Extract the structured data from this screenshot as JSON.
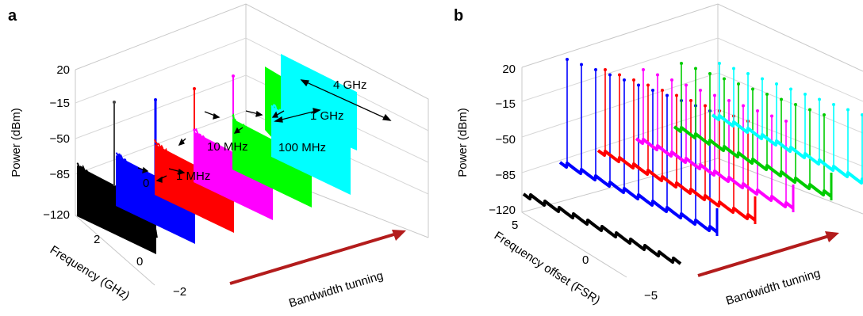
{
  "chart_data": [
    {
      "panel": "a",
      "type": "line",
      "dimensions": "3d-waterfall",
      "xlabel": "Frequency (GHz)",
      "ylabel": "Power (dBm)",
      "x_ticks": [
        "2",
        "0",
        "−2"
      ],
      "y_ticks": [
        "20",
        "−15",
        "−50",
        "−85",
        "−120"
      ],
      "ylim": [
        -120,
        20
      ],
      "depth_label": "Bandwidth tunning",
      "series": [
        {
          "color": "#000000",
          "linewidth_label": "0",
          "peak_dBm": 0,
          "floor_dBm": -85,
          "band_width_GHz": 0
        },
        {
          "color": "#0000ff",
          "linewidth_label": "1 MHz",
          "peak_dBm": 0,
          "floor_dBm": -80,
          "band_width_GHz": 0.001
        },
        {
          "color": "#ff0000",
          "linewidth_label": "10 MHz",
          "peak_dBm": 0,
          "floor_dBm": -75,
          "band_width_GHz": 0.01
        },
        {
          "color": "#ff00ff",
          "linewidth_label": "100 MHz",
          "peak_dBm": 0,
          "floor_dBm": -70,
          "band_width_GHz": 0.1
        },
        {
          "color": "#00ff00",
          "linewidth_label": "1 GHz",
          "peak_dBm": -15,
          "floor_dBm": -65,
          "band_width_GHz": 1
        },
        {
          "color": "#00ffff",
          "linewidth_label": "4 GHz",
          "peak_dBm": -10,
          "floor_dBm": -60,
          "band_width_GHz": 4
        }
      ],
      "annotations": [
        "0",
        "1 MHz",
        "10 MHz",
        "100 MHz",
        "1 GHz",
        "4 GHz"
      ]
    },
    {
      "panel": "b",
      "type": "line",
      "dimensions": "3d-waterfall",
      "xlabel": "Frequency offset (FSR)",
      "ylabel": "Power (dBm)",
      "x_ticks": [
        "5",
        "0",
        "−5"
      ],
      "y_ticks": [
        "20",
        "−15",
        "−50",
        "−85",
        "−120"
      ],
      "ylim": [
        -120,
        20
      ],
      "depth_label": "Bandwidth tunning",
      "series": [
        {
          "color": "#000000",
          "comb_peak_dBm": -95
        },
        {
          "color": "#0000ff",
          "comb_peak_dBm": -10
        },
        {
          "color": "#ff0000",
          "comb_peak_dBm": -5
        },
        {
          "color": "#ff00ff",
          "comb_peak_dBm": -5
        },
        {
          "color": "#00cc00",
          "comb_peak_dBm": 0
        },
        {
          "color": "#00ffff",
          "comb_peak_dBm": 0
        }
      ]
    }
  ],
  "accent_arrow_color": "#b31c1c"
}
